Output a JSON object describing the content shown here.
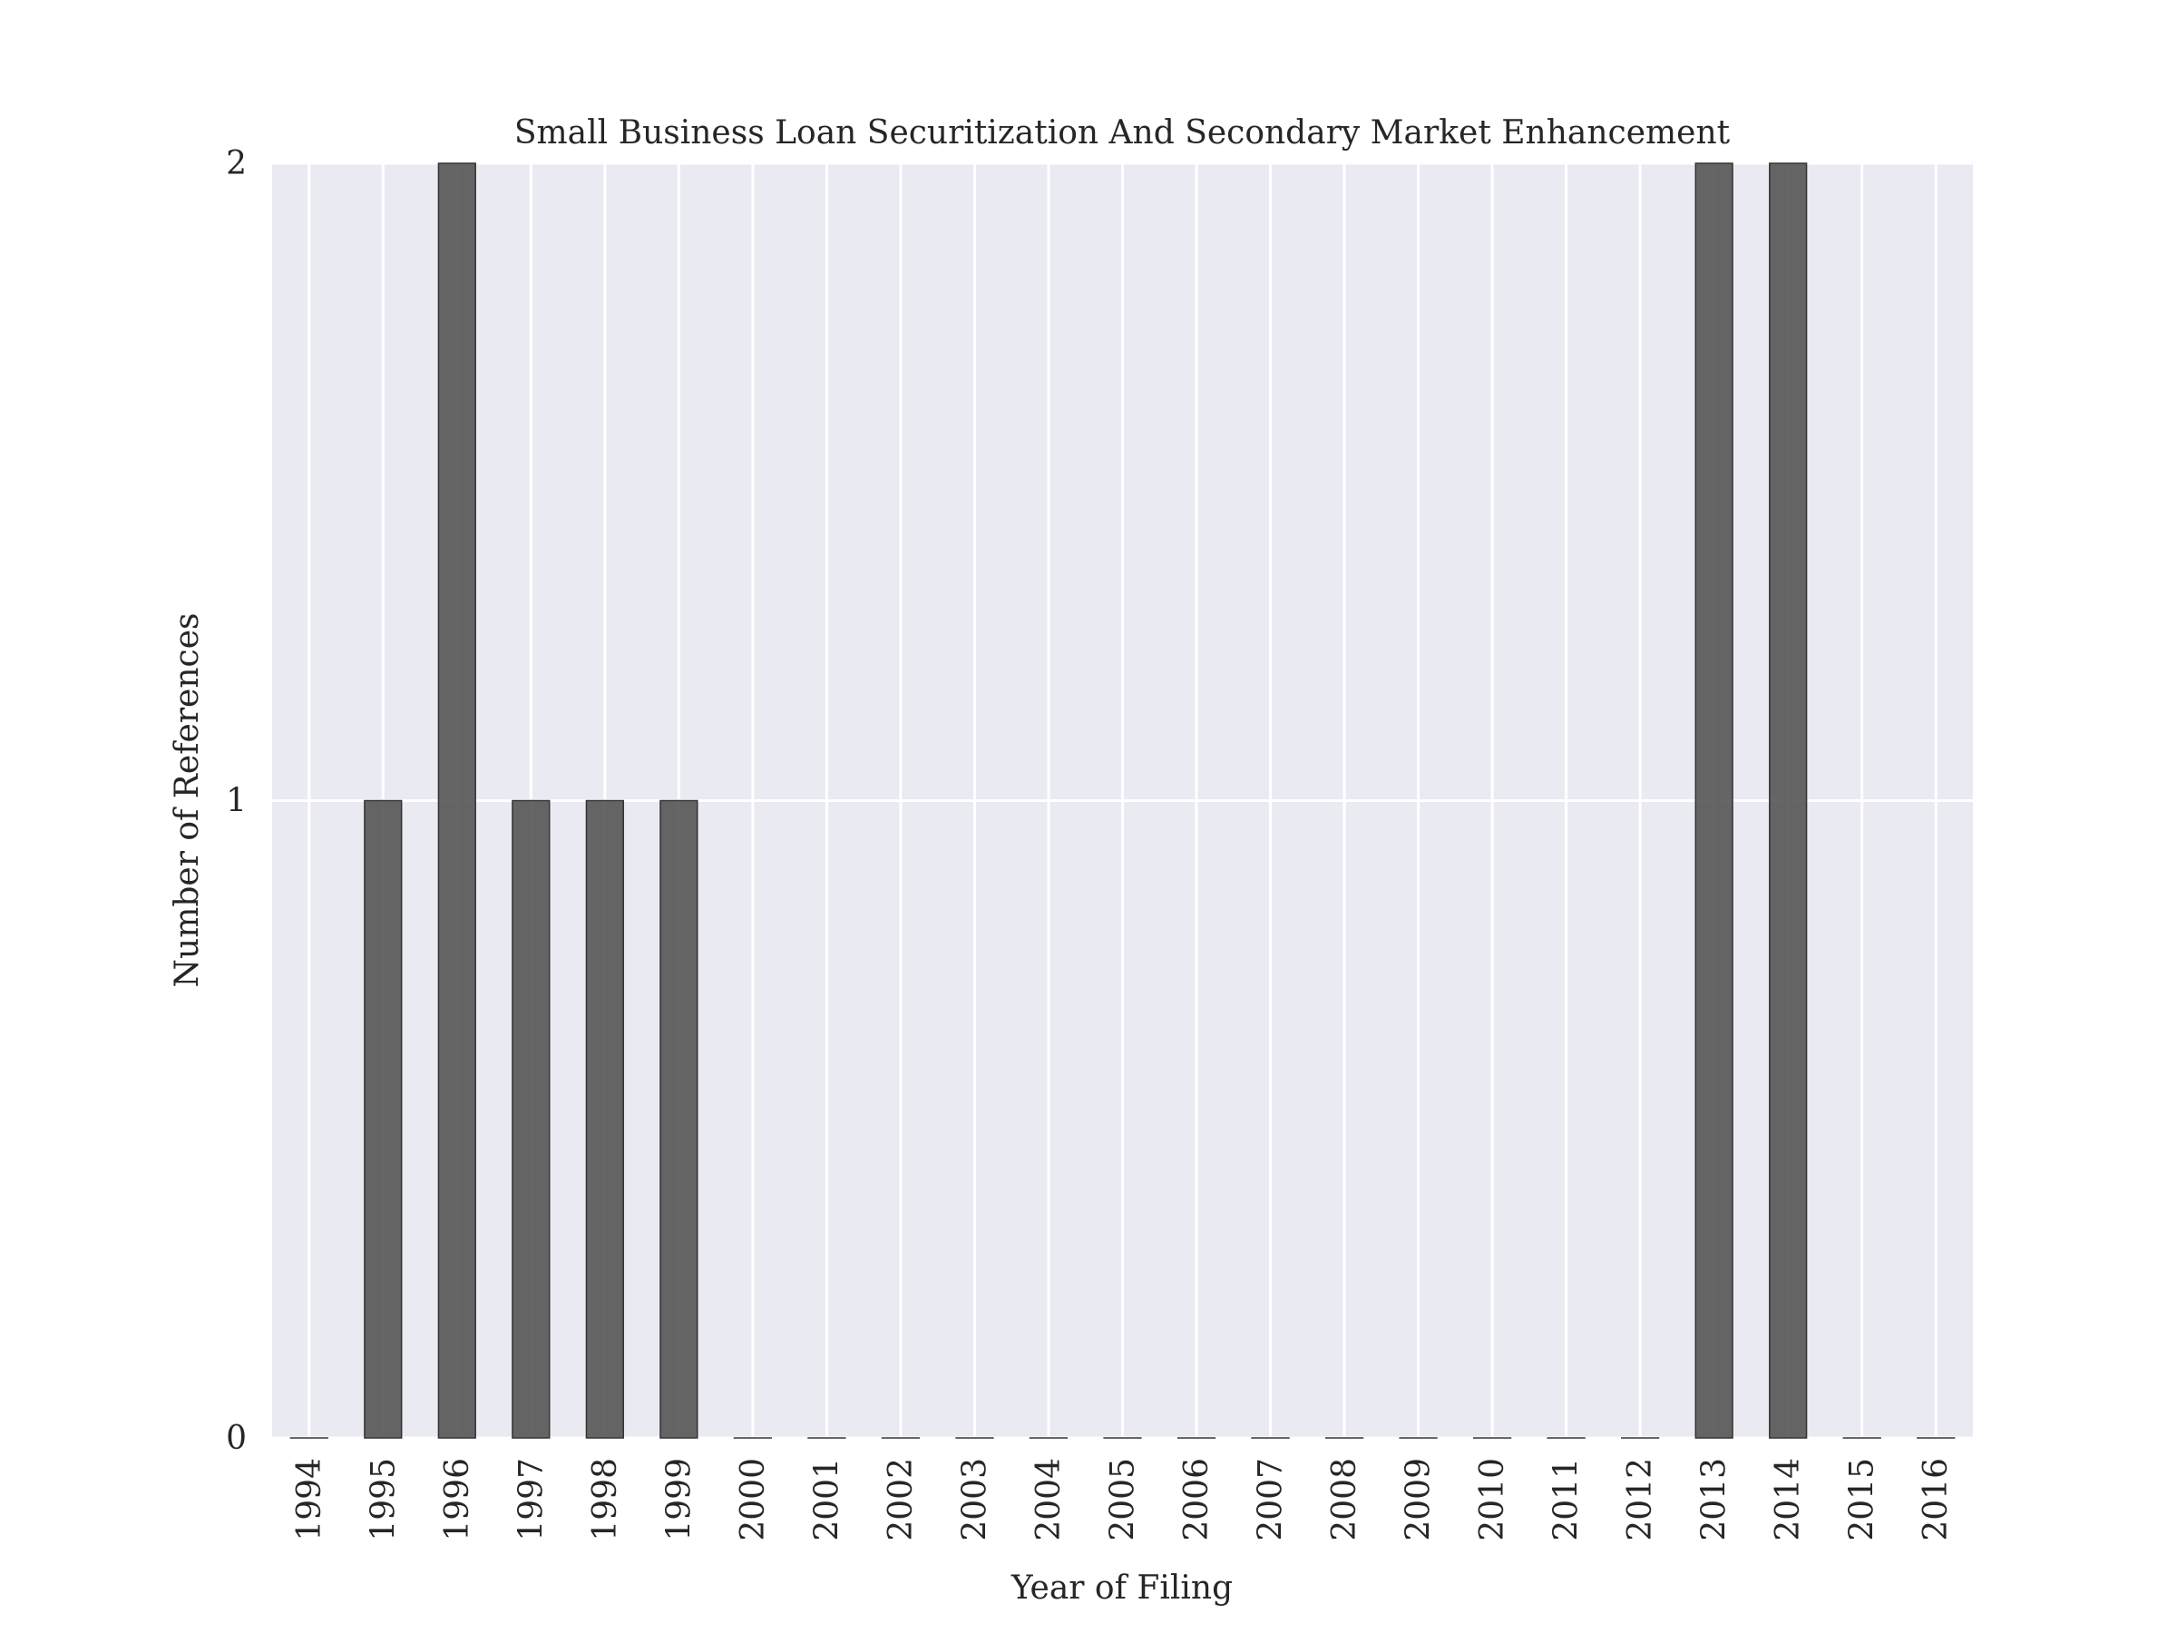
{
  "chart_data": {
    "type": "bar",
    "title": "Small Business Loan Securitization And Secondary Market Enhancement",
    "xlabel": "Year of Filing",
    "ylabel": "Number of References",
    "categories": [
      "1994",
      "1995",
      "1996",
      "1997",
      "1998",
      "1999",
      "2000",
      "2001",
      "2002",
      "2003",
      "2004",
      "2005",
      "2006",
      "2007",
      "2008",
      "2009",
      "2010",
      "2011",
      "2012",
      "2013",
      "2014",
      "2015",
      "2016"
    ],
    "values": [
      0,
      1,
      2,
      1,
      1,
      1,
      0,
      0,
      0,
      0,
      0,
      0,
      0,
      0,
      0,
      0,
      0,
      0,
      0,
      2,
      2,
      0,
      0
    ],
    "ylim": [
      0,
      2
    ],
    "yticks": [
      0,
      1,
      2
    ],
    "grid": true,
    "legend": "none",
    "colors": {
      "plot_background": "#EAEAF2",
      "grid": "#FFFFFF",
      "bar": "#555555",
      "bar_edge": "#333333",
      "text": "#262626"
    }
  }
}
